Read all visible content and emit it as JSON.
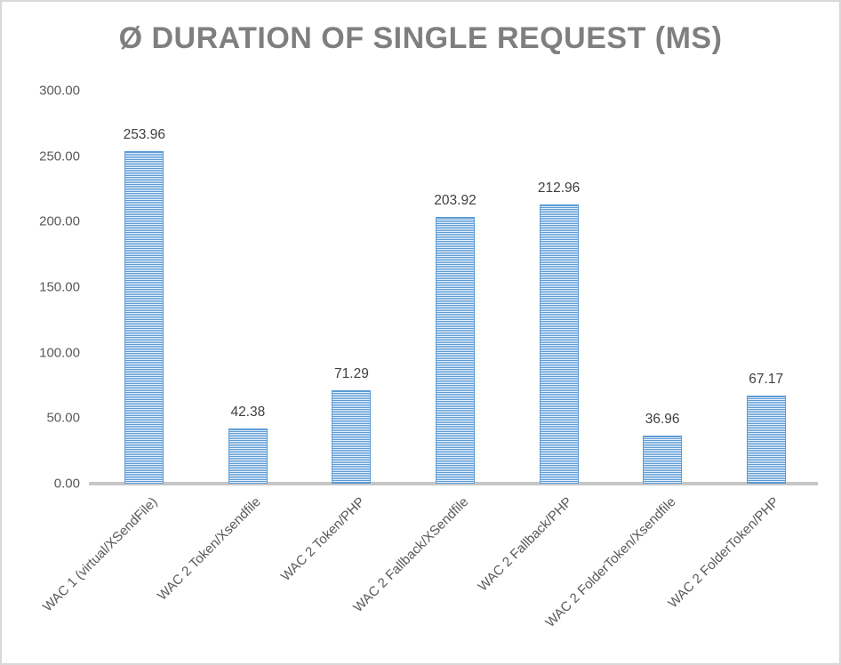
{
  "chart_data": {
    "type": "bar",
    "title": "Ø DURATION OF SINGLE REQUEST (MS)",
    "categories": [
      "WAC 1 (virtual/XSendFile)",
      "WAC 2 Token/Xsendfile",
      "WAC 2 Token/PHP",
      "WAC 2 Fallback/XSendfile",
      "WAC 2 Fallback/PHP",
      "WAC 2 FolderToken/Xsendfile",
      "WAC 2 FolderToken/PHP"
    ],
    "values": [
      253.96,
      42.38,
      71.29,
      203.92,
      212.96,
      36.96,
      67.17
    ],
    "value_labels": [
      "253.96",
      "42.38",
      "71.29",
      "203.92",
      "212.96",
      "36.96",
      "67.17"
    ],
    "xlabel": "",
    "ylabel": "",
    "ylim": [
      0,
      300
    ],
    "ytick_values": [
      300,
      250,
      200,
      150,
      100,
      50,
      0
    ],
    "ytick_labels": [
      "300.00",
      "250.00",
      "200.00",
      "150.00",
      "100.00",
      "50.00",
      "0.00"
    ],
    "grid": false,
    "legend": "none",
    "x_label_rotation_deg": 45,
    "bar_fill_pattern": "horizontal-stripes",
    "colors": {
      "bar_stripe": "#5b9bd5",
      "bar_stripe_light": "#e7f0fa",
      "axis_line": "#c6c6c6",
      "title_text": "#7f7f7f",
      "tick_text": "#595959",
      "value_label_text": "#404040",
      "frame_border": "#d8d8d8"
    }
  }
}
